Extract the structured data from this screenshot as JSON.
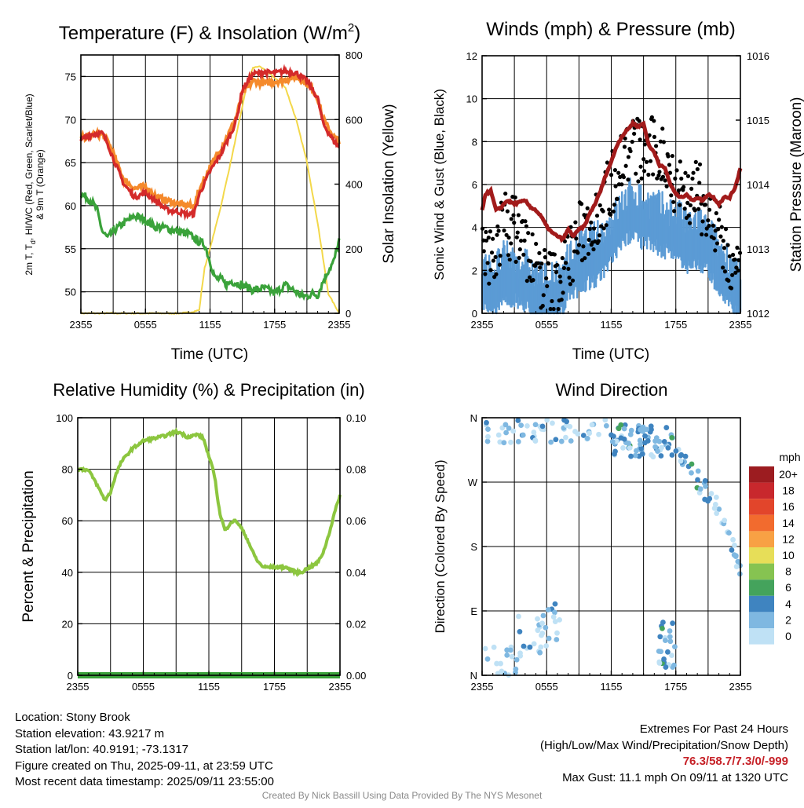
{
  "page": {
    "footer": {
      "location": "Location: Stony Brook",
      "elevation": "Station elevation: 43.9217 m",
      "latlon": "Station lat/lon: 40.9191; -73.1317",
      "created": "Figure created on Thu, 2025-09-11, at 23:59 UTC",
      "recent": "Most recent data timestamp: 2025/09/11 23:55:00",
      "extremes_title": "Extremes For Past 24 Hours",
      "extremes_sub": "(High/Low/Max Wind/Precipitation/Snow Depth)",
      "extremes_values": "76.3/58.7/7.3/0/-999",
      "max_gust": "Max Gust: 11.1 mph On 09/11 at 1320 UTC",
      "credit": "Created By Nick Bassill Using Data Provided By The NYS Mesonet"
    },
    "colors": {
      "temp": "#d42a2a",
      "heat_index": "#f58a2c",
      "dewpoint": "#3aa23a",
      "insolation": "#f3d84a",
      "wind": "#5b9bd5",
      "gust": "#000000",
      "pressure": "#a21b1b",
      "rh": "#8cc63f",
      "precip": "#3aa23a"
    }
  },
  "chart_data": [
    {
      "id": "temp",
      "type": "line",
      "title": "Temperature (F) & Insolation (W/m",
      "title_sup": "2",
      "title_end": ")",
      "xlabel": "Time (UTC)",
      "ylabel_left_lines": [
        "2m T, T",
        "d",
        ", HI/WC (Red, Green, Scarlet/Blue)",
        "& 9m T (Orange)"
      ],
      "ylabel_right": "Solar Insolation (Yellow)",
      "x_ticks": [
        "2355",
        "0555",
        "1155",
        "1755",
        "2355"
      ],
      "x_range": [
        0,
        24
      ],
      "ylim": [
        47.5,
        77.5
      ],
      "y_ticks": [
        50,
        55,
        60,
        65,
        70,
        75
      ],
      "y2lim": [
        0,
        800
      ],
      "y2_ticks": [
        0,
        200,
        400,
        600,
        800
      ],
      "series": [
        {
          "key": "nine_m",
          "x": [
            0,
            0.5,
            1,
            2,
            2.5,
            3,
            4,
            5,
            6,
            7,
            8,
            9,
            10,
            10.5,
            11,
            12,
            12.5,
            13,
            14,
            14.5,
            15,
            16,
            17,
            18,
            19,
            20,
            21,
            21.5,
            22,
            22.5,
            23,
            23.5,
            24
          ],
          "values": [
            67.8,
            68,
            68.2,
            68.3,
            67.5,
            66,
            63,
            62,
            62.2,
            61,
            60.6,
            60.2,
            60,
            59.8,
            61.8,
            64.5,
            65.5,
            66.6,
            69,
            70.5,
            73,
            74.5,
            74.2,
            74.4,
            74.6,
            75,
            74.2,
            73.5,
            72.5,
            70,
            69,
            68,
            67.5
          ]
        },
        {
          "key": "temp",
          "x": [
            0,
            0.5,
            1,
            2,
            2.5,
            3,
            4,
            5,
            6,
            7,
            8,
            9,
            10,
            10.5,
            11,
            12,
            12.5,
            13,
            14,
            14.5,
            15,
            16,
            17,
            18,
            19,
            20,
            21,
            21.5,
            22,
            22.5,
            23,
            23.5,
            24
          ],
          "values": [
            67.6,
            68,
            68.3,
            68.4,
            67.2,
            65.5,
            62.5,
            61,
            61.5,
            60.5,
            59.5,
            59.3,
            59,
            59,
            61.3,
            64,
            65,
            66,
            68.5,
            70.2,
            73.5,
            75.3,
            75.5,
            75.4,
            75.6,
            75.4,
            74.5,
            73.5,
            72.5,
            69.5,
            68.5,
            67.5,
            66.8
          ]
        },
        {
          "key": "dewpoint",
          "x": [
            0,
            0.5,
            1,
            1.5,
            2,
            2.5,
            3,
            4,
            5,
            6,
            7,
            8,
            9,
            10,
            11,
            11.5,
            12,
            12.5,
            13,
            13.5,
            14,
            15,
            16,
            17,
            17.5,
            18,
            19,
            20,
            20.5,
            21,
            21.5,
            22,
            22.5,
            23,
            23.5,
            24
          ],
          "values": [
            61.3,
            61,
            60.5,
            59.5,
            57,
            56.2,
            57,
            58,
            58.8,
            58.3,
            57.5,
            57.4,
            57,
            56.7,
            55.8,
            55.5,
            53.5,
            51.5,
            51.5,
            50.8,
            51.2,
            50.8,
            50.2,
            50.4,
            50.2,
            49.8,
            50.8,
            50,
            49.5,
            49.5,
            49.8,
            49.6,
            51.2,
            52.5,
            53.5,
            56
          ]
        },
        {
          "key": "insolation",
          "x": [
            0,
            9,
            10,
            11,
            11.25,
            11.5,
            12,
            13,
            14,
            15,
            15.5,
            16,
            16.5,
            17,
            18,
            19,
            20,
            21,
            22,
            23,
            24
          ],
          "values": [
            0,
            0,
            2,
            10,
            80,
            140,
            200,
            330,
            480,
            640,
            720,
            760,
            765,
            755,
            730,
            700,
            600,
            470,
            280,
            60,
            0
          ]
        }
      ]
    },
    {
      "id": "wind",
      "type": "scatter",
      "title": "Winds (mph) & Pressure (mb)",
      "xlabel": "Time (UTC)",
      "ylabel_left": "Sonic Wind & Gust (Blue, Black)",
      "ylabel_right": "Station Pressure (Maroon)",
      "x_ticks": [
        "2355",
        "0555",
        "1155",
        "1755",
        "2355"
      ],
      "x_range": [
        0,
        24
      ],
      "ylim": [
        0,
        12
      ],
      "y_ticks": [
        0,
        2,
        4,
        6,
        8,
        10,
        12
      ],
      "y2lim": [
        1012,
        1016
      ],
      "y2_ticks": [
        1012,
        1013,
        1014,
        1015,
        1016
      ],
      "series": [
        {
          "key": "wind_base",
          "x": [
            0,
            1,
            2,
            3,
            4,
            5,
            6,
            7,
            8,
            9,
            10,
            11,
            12,
            13,
            14,
            15,
            16,
            17,
            18,
            19,
            20,
            21,
            22,
            23,
            24
          ],
          "values": [
            1,
            0.9,
            1.5,
            1.4,
            1.2,
            0.6,
            0.5,
            0.5,
            1.5,
            2,
            2.3,
            2.5,
            3.2,
            4,
            4.6,
            4.1,
            4,
            3.7,
            3.6,
            3,
            3.1,
            2.8,
            2,
            1.4,
            0.6
          ]
        },
        {
          "key": "gust_base",
          "x": [
            0,
            1,
            2,
            3,
            4,
            5,
            6,
            7,
            8,
            9,
            10,
            11,
            12,
            13,
            14,
            15,
            16,
            17,
            18,
            19,
            20,
            21,
            22,
            23,
            24
          ],
          "values": [
            2.4,
            2.6,
            4.2,
            4,
            3.2,
            2,
            1.5,
            1.4,
            2.5,
            3.6,
            4.2,
            4.8,
            6,
            7.2,
            7.8,
            7.4,
            7.6,
            7.2,
            6.2,
            5.5,
            5.6,
            4.6,
            3.5,
            2.3,
            1.2
          ]
        },
        {
          "key": "pressure",
          "x": [
            0,
            0.3,
            0.8,
            1.3,
            1.8,
            2.3,
            3,
            4,
            4.5,
            5,
            5.5,
            6,
            6.5,
            7,
            7.5,
            8,
            8.5,
            9,
            9.5,
            10,
            10.5,
            11,
            11.5,
            12,
            12.5,
            13,
            13.5,
            14,
            14.5,
            15,
            15.5,
            16,
            16.5,
            17,
            17.5,
            18,
            18.5,
            19,
            19.5,
            20,
            20.5,
            21,
            21.5,
            22,
            22.5,
            23,
            23.5,
            24
          ],
          "values": [
            1013.6,
            1013.85,
            1013.9,
            1013.6,
            1013.65,
            1013.75,
            1013.7,
            1013.75,
            1013.65,
            1013.6,
            1013.5,
            1013.35,
            1013.25,
            1013.2,
            1013.15,
            1013.3,
            1013.2,
            1013.3,
            1013.35,
            1013.55,
            1013.7,
            1013.9,
            1014.15,
            1014.35,
            1014.6,
            1014.75,
            1014.85,
            1014.95,
            1014.9,
            1014.95,
            1014.6,
            1014.5,
            1014.3,
            1014.25,
            1014.0,
            1013.85,
            1013.8,
            1013.85,
            1013.75,
            1013.8,
            1013.75,
            1013.85,
            1013.8,
            1013.7,
            1013.8,
            1013.8,
            1013.95,
            1014.25
          ]
        }
      ]
    },
    {
      "id": "rh",
      "type": "line",
      "title": "Relative Humidity (%) & Precipitation (in)",
      "ylabel_left": "Percent & Precipitation",
      "x_ticks": [
        "2355",
        "0555",
        "1155",
        "1755",
        "2355"
      ],
      "x_range": [
        0,
        24
      ],
      "ylim": [
        0,
        100
      ],
      "y_ticks": [
        0,
        20,
        40,
        60,
        80,
        100
      ],
      "y2lim": [
        0,
        0.1
      ],
      "y2_ticks": [
        "0.00",
        "0.02",
        "0.04",
        "0.06",
        "0.08",
        "0.10"
      ],
      "series": [
        {
          "key": "rh",
          "x": [
            0,
            0.5,
            1,
            1.5,
            2,
            2.5,
            3,
            3.5,
            4,
            5,
            6,
            6.5,
            7,
            8,
            9,
            9.5,
            10,
            10.5,
            11,
            11.5,
            12,
            12.5,
            13,
            13.5,
            14,
            14.5,
            15,
            15.5,
            16,
            16.5,
            17,
            18,
            19,
            20,
            20.5,
            21,
            21.5,
            22,
            22.5,
            23,
            23.5,
            24
          ],
          "values": [
            80,
            80,
            79.5,
            76,
            72,
            68,
            71,
            78,
            83,
            88,
            91,
            91.5,
            92,
            93,
            94.5,
            94,
            92.5,
            93,
            93.5,
            92,
            85,
            78,
            63,
            56,
            59.5,
            60,
            57,
            53,
            48,
            44,
            42,
            42,
            42,
            40,
            40,
            41.5,
            42.5,
            44,
            48,
            55,
            63,
            70
          ]
        },
        {
          "key": "precip",
          "x": [
            0,
            24
          ],
          "values": [
            0,
            0
          ]
        }
      ]
    },
    {
      "id": "dir",
      "type": "scatter",
      "title": "Wind Direction",
      "ylabel_left": "Direction (Colored By Speed)",
      "x_ticks": [
        "2355",
        "0555",
        "1155",
        "1755",
        "2355"
      ],
      "x_range": [
        0,
        24
      ],
      "ylim": [
        0,
        360
      ],
      "y_tick_values": [
        0,
        90,
        180,
        270,
        360
      ],
      "y_tick_labels": [
        "N",
        "E",
        "S",
        "W",
        "N"
      ],
      "legend": {
        "title": "mph",
        "labels": [
          "20+",
          "18",
          "16",
          "14",
          "12",
          "10",
          "8",
          "6",
          "4",
          "2",
          "0"
        ],
        "colors": [
          "#9c1c20",
          "#c8282d",
          "#e2452b",
          "#f26b2e",
          "#f8a144",
          "#e7de58",
          "#86c351",
          "#44a35c",
          "#3f84c0",
          "#7fb8e1",
          "#bfe1f5"
        ]
      },
      "clusters": [
        {
          "x": [
            0.2,
            11.8
          ],
          "ymin": 325,
          "ymax": 358
        },
        {
          "x": [
            12.0,
            16.8
          ],
          "ymin": 305,
          "ymax": 352
        },
        {
          "x": [
            16.8,
            21.2
          ],
          "ymin": 240,
          "ymax": 340
        },
        {
          "x": [
            21.2,
            24
          ],
          "ymin": 150,
          "ymax": 260
        },
        {
          "x": [
            0,
            6
          ],
          "ymin": 0,
          "ymax": 40
        },
        {
          "x": [
            3.3,
            7.2
          ],
          "ymin": 40,
          "ymax": 100
        },
        {
          "x": [
            16.3,
            18.0
          ],
          "ymin": 10,
          "ymax": 75
        }
      ]
    }
  ]
}
